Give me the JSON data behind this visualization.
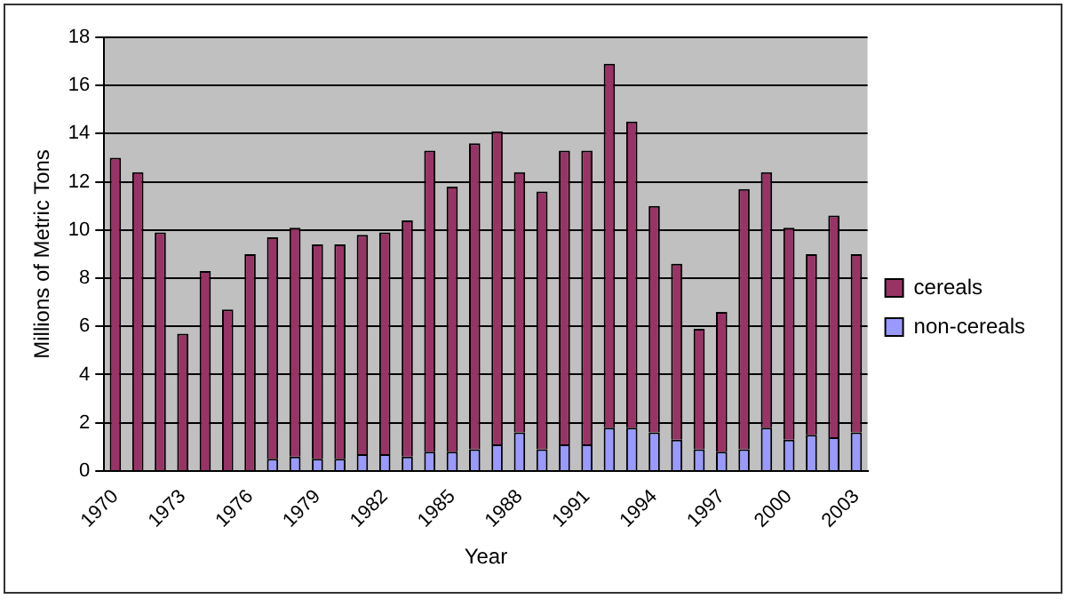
{
  "chart_data": {
    "type": "bar",
    "xlabel": "Year",
    "ylabel": "Millions of Metric Tons",
    "categories": [
      "1970",
      null,
      null,
      "1973",
      null,
      null,
      "1976",
      null,
      null,
      "1979",
      null,
      null,
      "1982",
      null,
      null,
      "1985",
      null,
      null,
      "1988",
      null,
      null,
      "1991",
      null,
      null,
      "1994",
      null,
      null,
      "1997",
      null,
      null,
      "2000",
      null,
      null,
      "2003"
    ],
    "stacked": true,
    "series": [
      {
        "name": "non-cereals",
        "color": "#9999ff",
        "values": [
          0,
          0,
          0,
          0,
          0,
          0,
          0,
          0.5,
          0.6,
          0.5,
          0.5,
          0.7,
          0.7,
          0.6,
          0.8,
          0.8,
          0.9,
          1.1,
          1.6,
          0.9,
          1.1,
          1.1,
          1.8,
          1.8,
          1.6,
          1.3,
          0.9,
          0.8,
          0.9,
          1.8,
          1.3,
          1.5,
          1.4,
          1.6
        ]
      },
      {
        "name": "cereals",
        "color": "#993366",
        "values": [
          13.0,
          12.4,
          9.9,
          5.7,
          8.3,
          6.7,
          9.0,
          9.2,
          9.5,
          8.9,
          8.9,
          9.1,
          9.2,
          9.8,
          12.5,
          11.0,
          12.7,
          13.0,
          10.8,
          10.7,
          12.2,
          12.2,
          15.1,
          12.7,
          9.4,
          7.3,
          5.0,
          5.8,
          10.8,
          10.6,
          8.8,
          7.5,
          9.2,
          7.4
        ]
      }
    ],
    "ylim": [
      0,
      18
    ],
    "yticks": [
      0,
      2,
      4,
      6,
      8,
      10,
      12,
      14,
      16,
      18
    ],
    "grid": "y",
    "legend": "right"
  }
}
